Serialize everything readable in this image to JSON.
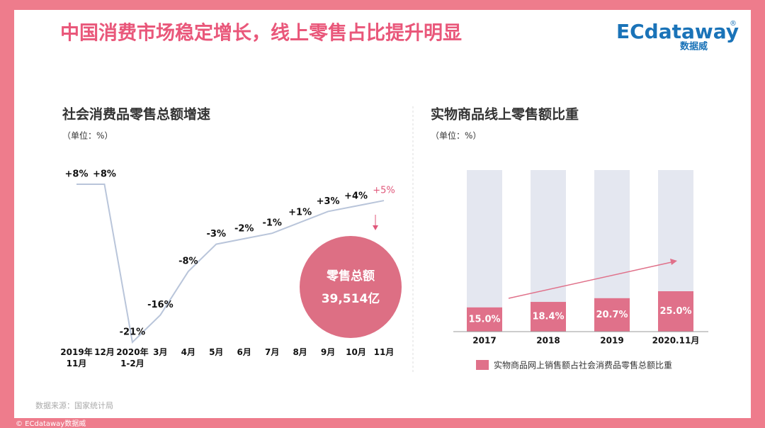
{
  "header": {
    "title": "中国消费市场稳定增长，线上零售占比提升明显",
    "logo": "ECdataway",
    "logo_mark": "®",
    "logo_sub": "数据威"
  },
  "chart_data": [
    {
      "type": "line",
      "title": "社会消费品零售总额增速",
      "subtitle": "（单位：%）",
      "categories": [
        "2019年\n11月",
        "12月",
        "2020年\n1-2月",
        "3月",
        "4月",
        "5月",
        "6月",
        "7月",
        "8月",
        "9月",
        "10月",
        "11月"
      ],
      "values": [
        8,
        8,
        -21,
        -16,
        -8,
        -3,
        -2,
        -1,
        1,
        3,
        4,
        5
      ],
      "value_labels": [
        "+8%",
        "+8%",
        "-21%",
        "-16%",
        "-8%",
        "-3%",
        "-2%",
        "-1%",
        "+1%",
        "+3%",
        "+4%",
        "+5%"
      ],
      "color": "#b9c5da",
      "highlight_color": "#e0577a",
      "annotation": {
        "label": "零售总额",
        "value": "39,514亿",
        "color": "#dd6f84"
      }
    },
    {
      "type": "bar",
      "title": "实物商品线上零售额比重",
      "subtitle": "（单位：%）",
      "categories": [
        "2017",
        "2018",
        "2019",
        "2020.11月"
      ],
      "series": [
        {
          "name": "实物商品网上销售额占社会消费品零售总额比重",
          "color": "#e0718a",
          "values": [
            15.0,
            18.4,
            20.7,
            25.0
          ],
          "value_labels": [
            "15.0%",
            "18.4%",
            "20.7%",
            "25.0%"
          ]
        }
      ],
      "background_color": "#e4e7f0",
      "ylim": [
        0,
        100
      ]
    }
  ],
  "source": "数据来源：国家统计局",
  "copyright": "© ECdataway数据威"
}
